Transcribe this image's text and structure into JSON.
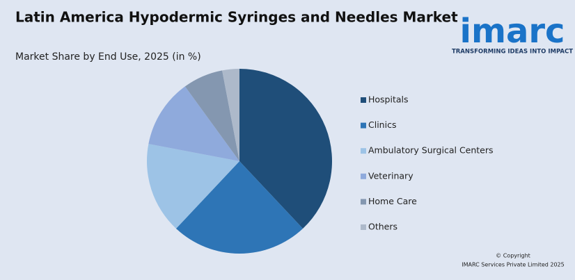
{
  "chart_data": {
    "type": "pie",
    "title": "Latin America Hypodermic Syringes and Needles Market",
    "subtitle": "Market Share by End Use, 2025 (in %)",
    "categories": [
      "Hospitals",
      "Clinics",
      "Ambulatory Surgical Centers",
      "Veterinary",
      "Home Care",
      "Others"
    ],
    "values": [
      38,
      24,
      16,
      12,
      7,
      3
    ],
    "colors": [
      "#1f4e79",
      "#2e75b6",
      "#9dc3e6",
      "#8faadc",
      "#8497b0",
      "#adb9ca"
    ],
    "legend": "right"
  },
  "logo": {
    "name": "imarc",
    "tagline": "TRANSFORMING IDEAS INTO IMPACT"
  },
  "footer": {
    "copyright": "© Copyright",
    "owner": "IMARC Services Private Limited 2025"
  }
}
